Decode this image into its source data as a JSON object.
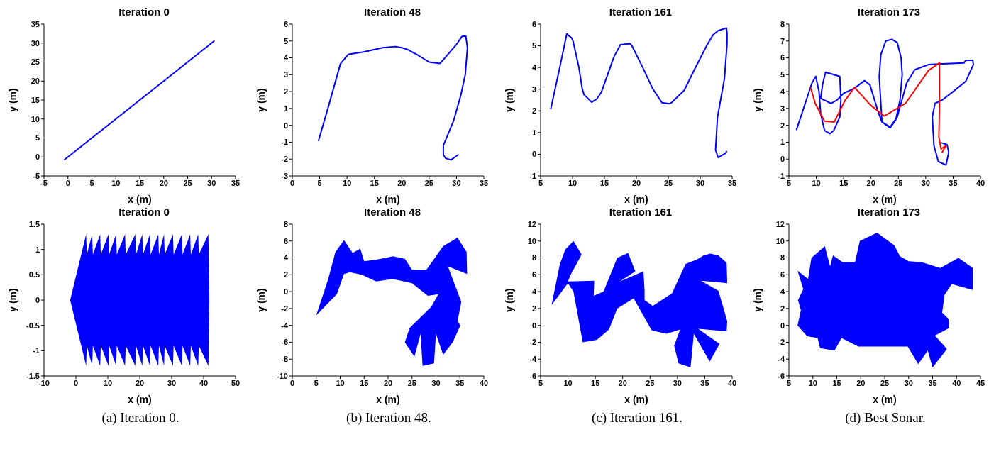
{
  "chart_data": [
    {
      "type": "line",
      "title": "Iteration 0",
      "xlabel": "x (m)",
      "ylabel": "y (m)",
      "xlim": [
        -5,
        35
      ],
      "xticks": [
        -5,
        0,
        5,
        10,
        15,
        20,
        25,
        30,
        35
      ],
      "ylim": [
        -5,
        35
      ],
      "yticks": [
        -5,
        0,
        5,
        10,
        15,
        20,
        25,
        30,
        35
      ],
      "series": [
        {
          "color": "#0000ff",
          "x": [
            -0.7,
            30.5
          ],
          "values": [
            -0.7,
            30.5
          ]
        }
      ]
    },
    {
      "type": "line",
      "title": "Iteration 48",
      "xlabel": "x (m)",
      "ylabel": "y (m)",
      "xlim": [
        0,
        35
      ],
      "xticks": [
        0,
        5,
        10,
        15,
        20,
        25,
        30,
        35
      ],
      "ylim": [
        -3,
        6
      ],
      "yticks": [
        -3,
        -2,
        -1,
        0,
        1,
        2,
        3,
        4,
        5,
        6
      ],
      "series": [
        {
          "color": "#0000ff",
          "x": [
            4.8,
            6.5,
            8.8,
            10.2,
            13,
            16.5,
            18.8,
            20,
            21,
            23,
            25,
            27,
            30,
            31,
            31.7,
            32,
            31.6,
            30.8,
            29.5,
            27.6,
            27.6,
            28,
            29,
            30.3
          ],
          "values": [
            -0.9,
            1,
            3.65,
            4.2,
            4.35,
            4.6,
            4.67,
            4.6,
            4.5,
            4.15,
            3.75,
            3.67,
            4.8,
            5.27,
            5.3,
            4.6,
            3,
            1.8,
            0.3,
            -1.2,
            -1.75,
            -1.95,
            -2.05,
            -1.75
          ]
        }
      ]
    },
    {
      "type": "line",
      "title": "Iteration 161",
      "xlabel": "x (m)",
      "ylabel": "y (m)",
      "xlim": [
        5,
        35
      ],
      "xticks": [
        5,
        10,
        15,
        20,
        25,
        30,
        35
      ],
      "ylim": [
        -1,
        6
      ],
      "yticks": [
        -1,
        0,
        1,
        2,
        3,
        4,
        5,
        6
      ],
      "series": [
        {
          "color": "#0000ff",
          "x": [
            6.6,
            8,
            9.1,
            9.9,
            10.1,
            11,
            11.5,
            11.8,
            13,
            13.8,
            14.5,
            16.5,
            17.5,
            19,
            19.3,
            21,
            22.5,
            24,
            25.2,
            25.5,
            27.5,
            29,
            31,
            32,
            32.8,
            34.1,
            34.2,
            34.2,
            33.8,
            32.7,
            32.4,
            32.8,
            34,
            34.1
          ],
          "values": [
            2.1,
            4,
            5.55,
            5.35,
            5.2,
            4,
            3.05,
            2.75,
            2.4,
            2.55,
            2.85,
            4.5,
            5.05,
            5.1,
            5,
            4,
            3.05,
            2.38,
            2.33,
            2.38,
            2.95,
            3.85,
            5,
            5.5,
            5.7,
            5.82,
            5.6,
            5.1,
            3.5,
            1.7,
            0.2,
            -0.15,
            0.05,
            0.12
          ]
        }
      ]
    },
    {
      "type": "line",
      "title": "Iteration 173",
      "xlabel": "x (m)",
      "ylabel": "y (m)",
      "xlim": [
        5,
        40
      ],
      "xticks": [
        5,
        10,
        15,
        20,
        25,
        30,
        35,
        40
      ],
      "ylim": [
        -1,
        8
      ],
      "yticks": [
        -1,
        0,
        1,
        2,
        3,
        4,
        5,
        6,
        7,
        8
      ],
      "series": [
        {
          "color": "#0000ff",
          "x": [
            6.4,
            9.2,
            9.9,
            10.5,
            10.8,
            11.5,
            12.5,
            13.2,
            14.3,
            14.5,
            14.3,
            11.7,
            11.2,
            10.8,
            12.7,
            13.8,
            15,
            17,
            18.8,
            19.8,
            21.3,
            22,
            23.5,
            24.5,
            25.3,
            25.7,
            25.5,
            24.8,
            23.8,
            22.7,
            21.8,
            21.5,
            22,
            23.5,
            24.8,
            26.5,
            28,
            30.5,
            33,
            37,
            37.3,
            38.6,
            38.7,
            37.3,
            35,
            33,
            31.7,
            31.2,
            31.5,
            32.3,
            33.7,
            34.2,
            33.9,
            33
          ],
          "values": [
            1.75,
            4.5,
            4.9,
            4,
            2.7,
            1.7,
            1.5,
            1.7,
            2.5,
            3.5,
            4.9,
            5.15,
            4.5,
            3.6,
            3.3,
            3.5,
            3.9,
            4.2,
            4.65,
            4.4,
            2.8,
            2.2,
            1.85,
            2.3,
            3.5,
            5,
            6,
            6.9,
            7.1,
            7,
            6.2,
            4.9,
            2.2,
            1.9,
            2.5,
            4.5,
            5.3,
            5.6,
            5.65,
            5.7,
            5.85,
            5.85,
            5.6,
            4.6,
            4,
            3.5,
            3.3,
            2.5,
            0.8,
            -0.15,
            -0.35,
            0.4,
            0.85,
            0.95
          ]
        },
        {
          "color": "#ff0000",
          "x": [
            9,
            9.8,
            11.5,
            13.3,
            15.2,
            17,
            19.9,
            22.4,
            26.3,
            30.5,
            32.5,
            32.5,
            32.4,
            32.8,
            33.7,
            33
          ],
          "values": [
            4.2,
            3.3,
            2.25,
            2.2,
            3.45,
            4.25,
            3.2,
            2.55,
            3.3,
            5.25,
            5.7,
            3,
            1.3,
            0.6,
            0.8,
            0.4
          ]
        }
      ]
    },
    {
      "type": "area",
      "title": "Iteration 0",
      "xlabel": "x (m)",
      "ylabel": "y (m)",
      "xlim": [
        -10,
        50
      ],
      "xticks": [
        -10,
        0,
        10,
        20,
        30,
        40,
        50
      ],
      "ylim": [
        -1.5,
        1.5
      ],
      "yticks": [
        -1.5,
        -1,
        -0.5,
        0,
        0.5,
        1,
        1.5
      ],
      "annotations": [
        "(a) Iteration 0."
      ],
      "series": [
        {
          "color": "#0000ff",
          "x": [
            -1.8,
            3.2,
            3.4,
            5.1,
            5.3,
            7.6,
            7.8,
            10.2,
            10.4,
            12.6,
            12.8,
            15.4,
            15.6,
            18.6,
            18.8,
            20.8,
            21,
            23.2,
            23.4,
            25.8,
            26,
            27.6,
            27.8,
            30.4,
            30.6,
            33.2,
            33.4,
            35.8,
            36,
            38.3,
            38.5,
            41.5,
            41.8,
            41.5,
            38.5,
            38.3,
            36,
            35.8,
            33.4,
            33.2,
            30.6,
            30.4,
            27.8,
            27.6,
            26,
            25.8,
            23.4,
            23.2,
            21,
            20.8,
            18.8,
            18.6,
            15.6,
            15.4,
            12.8,
            12.6,
            10.4,
            10.2,
            7.8,
            7.6,
            5.3,
            5.1,
            3.4,
            3.2,
            -1.8
          ],
          "values": [
            0,
            1.3,
            0.9,
            1.3,
            0.9,
            1.3,
            0.9,
            1.3,
            0.9,
            1.3,
            0.9,
            1.3,
            0.9,
            1.3,
            0.9,
            1.3,
            0.9,
            1.3,
            0.9,
            1.3,
            0.9,
            1.3,
            0.9,
            1.3,
            0.9,
            1.3,
            0.9,
            1.3,
            0.9,
            1.3,
            0.9,
            1.3,
            0,
            -1.3,
            -0.9,
            -1.3,
            -0.9,
            -1.3,
            -0.9,
            -1.3,
            -0.9,
            -1.3,
            -0.9,
            -1.3,
            -0.9,
            -1.3,
            -0.9,
            -1.3,
            -0.9,
            -1.3,
            -0.9,
            -1.3,
            -0.9,
            -1.3,
            -0.9,
            -1.3,
            -0.9,
            -1.3,
            -0.9,
            -1.3,
            -0.9,
            -1.3,
            -0.9,
            -1.3,
            0
          ]
        }
      ]
    },
    {
      "type": "area",
      "title": "Iteration 48",
      "xlabel": "x (m)",
      "ylabel": "y (m)",
      "xlim": [
        0,
        40
      ],
      "xticks": [
        0,
        5,
        10,
        15,
        20,
        25,
        30,
        35,
        40
      ],
      "ylim": [
        -10,
        8
      ],
      "yticks": [
        -10,
        -8,
        -6,
        -4,
        -2,
        0,
        2,
        4,
        6,
        8
      ],
      "annotations": [
        "(b) Iteration 48."
      ],
      "series": [
        {
          "color": "#0000ff",
          "x": [
            5,
            7.5,
            9,
            10.8,
            12.6,
            14.2,
            15,
            17.5,
            19.5,
            21,
            23.5,
            25,
            28,
            31.5,
            34.5,
            36.4,
            36.5,
            32.5,
            35.3,
            34.5,
            35.1,
            33.5,
            31.5,
            30,
            29.6,
            27.2,
            26.8,
            25.5,
            23.5,
            24.5,
            29,
            30.5,
            28.3,
            25,
            21,
            17.5,
            14.5,
            12,
            10.8,
            9.3,
            5
          ],
          "values": [
            -2.8,
            1.5,
            4.7,
            6.1,
            4.6,
            5.1,
            3.6,
            3.8,
            4,
            4.2,
            3.9,
            2.6,
            2.6,
            5.4,
            6.4,
            4.7,
            2.1,
            3,
            -1.2,
            -3.5,
            -4,
            -6,
            -7.5,
            -5,
            -8.5,
            -8.8,
            -5,
            -7.7,
            -6,
            -4.3,
            -1.8,
            -0.3,
            -0.5,
            1,
            1.5,
            1.2,
            2,
            2.3,
            2.1,
            -0.3,
            -2.8
          ]
        }
      ]
    },
    {
      "type": "area",
      "title": "Iteration 161",
      "xlabel": "x (m)",
      "ylabel": "y (m)",
      "xlim": [
        5,
        40
      ],
      "xticks": [
        5,
        10,
        15,
        20,
        25,
        30,
        35,
        40
      ],
      "ylim": [
        -6,
        12
      ],
      "yticks": [
        -6,
        -4,
        -2,
        0,
        2,
        4,
        6,
        8,
        10,
        12
      ],
      "annotations": [
        "(c) Iteration 161."
      ],
      "series": [
        {
          "color": "#0000ff",
          "x": [
            7,
            8.5,
            9.5,
            11,
            12.5,
            10.5,
            10,
            14.8,
            14.7,
            16.5,
            19,
            21,
            22.3,
            19.5,
            23.8,
            24,
            24,
            25.5,
            29,
            31.5,
            33.5,
            34.8,
            36,
            37.5,
            39,
            39.1,
            34.3,
            37.5,
            39.1,
            39,
            33.8,
            37.7,
            35.9,
            33,
            32.4,
            30.2,
            29.4,
            30.5,
            28,
            25.3,
            22,
            19,
            17.5,
            15.3,
            12.7,
            11,
            10,
            7
          ],
          "values": [
            2.4,
            7.2,
            9,
            10,
            8.4,
            6,
            5.2,
            5.3,
            3.5,
            4,
            8,
            8.6,
            6.4,
            5.2,
            6.4,
            4.1,
            3,
            2.3,
            3.8,
            7.3,
            7.8,
            8.3,
            8.5,
            8.3,
            7.4,
            5,
            5.3,
            4.1,
            0.5,
            -0.7,
            -0.4,
            -2.2,
            -4.3,
            -1,
            -5,
            -4.5,
            -2.4,
            -0.5,
            -1,
            -0.6,
            3.2,
            2,
            -0.5,
            -1.7,
            -2,
            4,
            5,
            2.4
          ]
        }
      ]
    },
    {
      "type": "area",
      "title": "Iteration 173",
      "xlabel": "x (m)",
      "ylabel": "y (m)",
      "xlim": [
        5,
        45
      ],
      "xticks": [
        5,
        10,
        15,
        20,
        25,
        30,
        35,
        40,
        45
      ],
      "ylim": [
        -6,
        12
      ],
      "yticks": [
        -6,
        -4,
        -2,
        0,
        2,
        4,
        6,
        8,
        10,
        12
      ],
      "annotations": [
        "(d) Best Sonar."
      ],
      "series": [
        {
          "color": "#0000ff",
          "x": [
            6.8,
            9,
            9.7,
            12.5,
            13.6,
            14.2,
            16.2,
            18.8,
            19.8,
            23.4,
            27,
            28.2,
            30,
            32.7,
            36.6,
            40.4,
            43.4,
            43.4,
            39,
            37.5,
            37,
            38.3,
            38.5,
            35.5,
            38,
            35,
            34,
            32,
            29.8,
            24.5,
            19.5,
            16,
            14.5,
            11.5,
            11,
            8.8,
            6.8,
            7.5,
            6.9,
            8,
            6.8
          ],
          "values": [
            6.5,
            5.5,
            8,
            9.4,
            7,
            8.3,
            7.5,
            7.5,
            10,
            11,
            9.5,
            8.2,
            7.6,
            7.5,
            6.8,
            8,
            6.8,
            4.2,
            4.9,
            3.6,
            1.5,
            0.8,
            -0.3,
            -1.2,
            -2.8,
            -5,
            -3,
            -4.6,
            -2.5,
            -2.5,
            -2.5,
            -1.5,
            -3,
            -2.7,
            -1.5,
            -1.3,
            0,
            1.8,
            3,
            4.3,
            6.5
          ]
        }
      ]
    }
  ]
}
